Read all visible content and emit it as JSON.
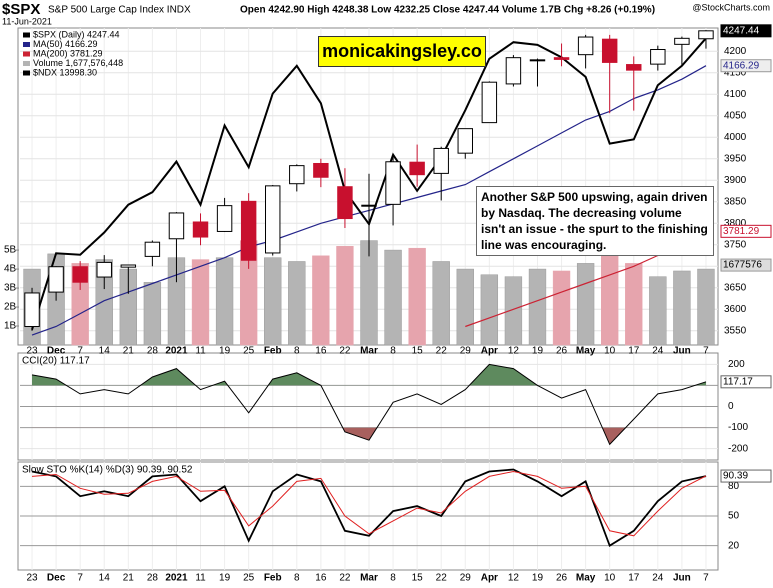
{
  "chart_data": [
    {
      "type": "candlestick",
      "title": "$SPX",
      "subtitle": "S&P 500 Large Cap Index INDX",
      "date": "11-Jun-2021",
      "quote": "Open 4242.90 High 4248.38 Low 4232.25 Close 4247.44 Volume 1.7B Chg +8.26 (+0.19%)",
      "source": "@StockCharts.com",
      "watermark": "monicakingsley.co",
      "annotation": "Another S&P 500 upswing, again driven by Nasdaq. The decreasing volume isn't an issue - the spurt to the finishing line was encouraging.",
      "name": "$SPX (Daily) 4247.44",
      "categories": [
        "23",
        "Dec",
        "7",
        "14",
        "21",
        "28",
        "2021",
        "11",
        "19",
        "25",
        "Feb",
        "8",
        "16",
        "22",
        "Mar",
        "8",
        "15",
        "22",
        "29",
        "Apr",
        "12",
        "19",
        "26",
        "May",
        "10",
        "17",
        "24",
        "Jun",
        "7"
      ],
      "open": [
        3560,
        3640,
        3699,
        3675,
        3698,
        3723,
        3764,
        3803,
        3781,
        3851,
        3731,
        3892,
        3939,
        3885,
        3842,
        3844,
        3942,
        3916,
        3963,
        4034,
        4124,
        4179,
        4185,
        4192,
        4228,
        4169,
        4170,
        4216,
        4229
      ],
      "high": [
        3650,
        3700,
        3712,
        3726,
        3703,
        3760,
        3826,
        3823,
        3859,
        3870,
        3889,
        3937,
        3950,
        3928,
        3915,
        3960,
        3983,
        3978,
        4020,
        4130,
        4191,
        4183,
        4218,
        4238,
        4238,
        4188,
        4213,
        4234,
        4249
      ],
      "low": [
        3550,
        3620,
        3645,
        3647,
        3636,
        3700,
        3663,
        3749,
        3780,
        3694,
        3725,
        3874,
        3884,
        3789,
        3723,
        3795,
        3885,
        3853,
        3950,
        4034,
        4118,
        4118,
        4165,
        4160,
        4056,
        4062,
        4155,
        4168,
        4206
      ],
      "close": [
        3638,
        3699,
        3663,
        3709,
        3703,
        3756,
        3824,
        3768,
        3841,
        3714,
        3887,
        3934,
        3907,
        3811,
        3842,
        3943,
        3913,
        3974,
        4020,
        4128,
        4185,
        4180,
        4181,
        4233,
        4174,
        4156,
        4204,
        4230,
        4247.44
      ],
      "up_color": "#000000",
      "down_color": "#c8102e",
      "series": [
        {
          "name": "MA(50) 4166.29",
          "color": "#24248a",
          "values": [
            3540,
            3560,
            3590,
            3620,
            3640,
            3660,
            3680,
            3700,
            3720,
            3745,
            3760,
            3780,
            3800,
            3815,
            3830,
            3845,
            3860,
            3875,
            3890,
            3920,
            3950,
            3980,
            4010,
            4040,
            4060,
            4090,
            4110,
            4135,
            4166.29
          ]
        },
        {
          "name": "MA(200) 3781.29",
          "color": "#cc2233",
          "values": [
            null,
            null,
            null,
            null,
            null,
            null,
            null,
            null,
            null,
            null,
            null,
            null,
            null,
            null,
            null,
            null,
            null,
            null,
            3560,
            3580,
            3600,
            3620,
            3640,
            3660,
            3680,
            3700,
            3725,
            3750,
            3781.29
          ]
        },
        {
          "name": "Volume 1,677,576,448",
          "color": "#b4b4b4",
          "down_color": "#e6a4ad",
          "axis": "volume",
          "values": [
            4.0,
            4.8,
            4.3,
            4.5,
            4.0,
            3.3,
            4.6,
            4.5,
            4.6,
            5.5,
            4.6,
            4.4,
            4.7,
            5.2,
            5.5,
            5.0,
            5.1,
            4.4,
            4.0,
            3.7,
            3.6,
            4.0,
            3.9,
            4.3,
            5.1,
            4.3,
            3.6,
            3.9,
            4.0
          ]
        },
        {
          "name": "$NDX 13998.30",
          "color": "#000000",
          "axis": "y2",
          "values": [
            11900,
            12450,
            12440,
            12600,
            12800,
            12890,
            13110,
            12800,
            13370,
            13070,
            13600,
            13800,
            13530,
            12900,
            12660,
            13160,
            12900,
            13140,
            13480,
            13850,
            13970,
            13950,
            13860,
            13720,
            13240,
            13270,
            13660,
            13800,
            13998.3
          ]
        }
      ],
      "ylim": [
        3517,
        4254
      ],
      "yticks": [
        3550,
        3600,
        3650,
        3700,
        3750,
        3800,
        3850,
        3900,
        3950,
        4000,
        4050,
        4100,
        4150,
        4200
      ],
      "y2lim": [
        11790,
        14072
      ],
      "vlim": [
        0,
        16.7
      ],
      "vticks": [
        {
          "value": 1,
          "label": "1B"
        },
        {
          "value": 2,
          "label": "2B"
        },
        {
          "value": 3,
          "label": "3B"
        },
        {
          "value": 4,
          "label": "4B"
        },
        {
          "value": 5,
          "label": "5B"
        }
      ],
      "price_tags": [
        4247.44,
        4166.29,
        3781.29
      ],
      "volume_tag": "1677576",
      "grid": true
    },
    {
      "type": "line",
      "title": "CCI(20) 117.17",
      "color": "#000000",
      "values": [
        150,
        130,
        60,
        80,
        60,
        140,
        180,
        80,
        120,
        -30,
        130,
        160,
        100,
        -120,
        -160,
        20,
        60,
        10,
        80,
        200,
        180,
        100,
        40,
        80,
        -180,
        -60,
        60,
        80,
        117.17
      ],
      "bands": [
        100,
        -100
      ],
      "band_colors": [
        "#5e8a5e",
        "#a8605e"
      ],
      "ylim": [
        -254,
        254
      ],
      "yticks": [
        200,
        100,
        0,
        -100,
        -200
      ],
      "tag": 117.17
    },
    {
      "type": "line",
      "title": "Slow STO %K(14) %D(3) 90.39, 90.52",
      "series": [
        {
          "color": "#000000",
          "values": [
            95,
            90,
            70,
            75,
            70,
            90,
            92,
            65,
            80,
            25,
            75,
            92,
            85,
            35,
            30,
            55,
            60,
            50,
            85,
            95,
            97,
            85,
            70,
            85,
            20,
            35,
            65,
            85,
            90.39
          ]
        },
        {
          "color": "#e02020",
          "values": [
            90,
            92,
            78,
            72,
            73,
            85,
            90,
            75,
            76,
            40,
            60,
            85,
            88,
            50,
            32,
            45,
            58,
            53,
            75,
            90,
            95,
            90,
            78,
            80,
            35,
            30,
            55,
            78,
            90.52
          ]
        }
      ],
      "ylim": [
        -4.6,
        104.6
      ],
      "yticks": [
        80,
        50,
        20
      ],
      "tag": 90.39
    }
  ]
}
